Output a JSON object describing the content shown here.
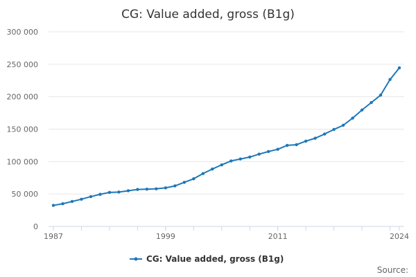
{
  "chart_data": {
    "type": "line",
    "title": "CG: Value added, gross (B1g)",
    "xlabel": "",
    "ylabel": "",
    "x_tick_labels": [
      "1987",
      "1999",
      "2011",
      "2024"
    ],
    "x_tick_years": [
      1987,
      1999,
      2011,
      2024
    ],
    "y_tick_labels": [
      "0",
      "50 000",
      "100 000",
      "150 000",
      "200 000",
      "250 000",
      "300 000"
    ],
    "ylim": [
      0,
      300000
    ],
    "xlim": [
      1987,
      2024
    ],
    "grid": true,
    "legend_position": "bottom",
    "series": [
      {
        "name": "CG: Value added, gross (B1g)",
        "color": "#1d77b8",
        "x": [
          1987,
          1988,
          1989,
          1990,
          1991,
          1992,
          1993,
          1994,
          1995,
          1996,
          1997,
          1998,
          1999,
          2000,
          2001,
          2002,
          2003,
          2004,
          2005,
          2006,
          2007,
          2008,
          2009,
          2010,
          2011,
          2012,
          2013,
          2014,
          2015,
          2016,
          2017,
          2018,
          2019,
          2020,
          2021,
          2022,
          2023,
          2024
        ],
        "values": [
          32500,
          35000,
          38500,
          42000,
          46000,
          49500,
          52500,
          53000,
          55000,
          57000,
          57500,
          58000,
          59500,
          62500,
          68000,
          73500,
          81500,
          88500,
          95000,
          101000,
          104000,
          107000,
          111500,
          115500,
          119000,
          125000,
          126000,
          131500,
          136000,
          142500,
          149500,
          156000,
          167000,
          179500,
          191000,
          202500,
          226500,
          244500
        ]
      }
    ]
  },
  "legend": {
    "label": "CG: Value added, gross (B1g)"
  },
  "source": {
    "label": "Source:"
  }
}
